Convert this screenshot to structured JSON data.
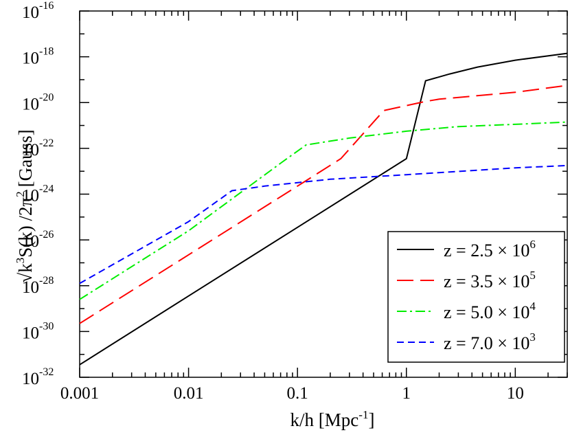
{
  "chart_data": {
    "type": "line",
    "title": "",
    "xlabel": {
      "base": "k/h [Mpc",
      "sup": "-1",
      "tail": "]"
    },
    "ylabel": {
      "radical": "√",
      "k": "k",
      "k_sup": "3",
      "mid": "S(k) /2π",
      "pi_sup": "2",
      "unit": "[Gauss]"
    },
    "xscale": "log",
    "yscale": "log",
    "xlim": [
      0.001,
      30
    ],
    "ylim": [
      1e-32,
      1e-16
    ],
    "x_ticks": [
      {
        "value": 0.001,
        "label": "0.001"
      },
      {
        "value": 0.01,
        "label": "0.01"
      },
      {
        "value": 0.1,
        "label": "0.1"
      },
      {
        "value": 1,
        "label": "1"
      },
      {
        "value": 10,
        "label": "10"
      }
    ],
    "y_ticks": [
      {
        "exp": -32,
        "base": "10",
        "sup": "-32"
      },
      {
        "exp": -30,
        "base": "10",
        "sup": "-30"
      },
      {
        "exp": -28,
        "base": "10",
        "sup": "-28"
      },
      {
        "exp": -26,
        "base": "10",
        "sup": "-26"
      },
      {
        "exp": -24,
        "base": "10",
        "sup": "-24"
      },
      {
        "exp": -22,
        "base": "10",
        "sup": "-22"
      },
      {
        "exp": -20,
        "base": "10",
        "sup": "-20"
      },
      {
        "exp": -18,
        "base": "10",
        "sup": "-18"
      },
      {
        "exp": -16,
        "base": "10",
        "sup": "-16"
      }
    ],
    "legend_position": "bottom-right",
    "series": [
      {
        "name": "z = 2.5 × 10^6",
        "label_main": "z = 2.5 × 10",
        "label_sup": "6",
        "color": "#000000",
        "dash": "solid",
        "points": [
          [
            0.001,
            -31.45
          ],
          [
            0.01,
            -28.45
          ],
          [
            0.1,
            -25.45
          ],
          [
            1,
            -22.45
          ],
          [
            1.5,
            -19.05
          ],
          [
            2.5,
            -18.75
          ],
          [
            4.5,
            -18.45
          ],
          [
            10,
            -18.15
          ],
          [
            30,
            -17.85
          ]
        ]
      },
      {
        "name": "z = 3.5 × 10^5",
        "label_main": "z = 3.5 × 10",
        "label_sup": "5",
        "color": "#ff0000",
        "dash": "long-dash",
        "points": [
          [
            0.001,
            -29.65
          ],
          [
            0.01,
            -26.65
          ],
          [
            0.1,
            -23.65
          ],
          [
            0.25,
            -22.45
          ],
          [
            0.62,
            -20.35
          ],
          [
            1.5,
            -19.95
          ],
          [
            2,
            -19.85
          ],
          [
            10,
            -19.55
          ],
          [
            30,
            -19.25
          ]
        ]
      },
      {
        "name": "z = 5.0 × 10^4",
        "label_main": "z = 5.0 × 10",
        "label_sup": "4",
        "color": "#00ee00",
        "dash": "dash-dot",
        "points": [
          [
            0.001,
            -28.6
          ],
          [
            0.01,
            -25.6
          ],
          [
            0.07,
            -22.65
          ],
          [
            0.12,
            -21.85
          ],
          [
            0.3,
            -21.55
          ],
          [
            1,
            -21.25
          ],
          [
            3,
            -21.05
          ],
          [
            10,
            -20.95
          ],
          [
            30,
            -20.85
          ]
        ]
      },
      {
        "name": "z = 7.0 × 10^3",
        "label_main": "z = 7.0 × 10",
        "label_sup": "3",
        "color": "#0000ff",
        "dash": "short-dash",
        "points": [
          [
            0.001,
            -27.9
          ],
          [
            0.01,
            -25.2
          ],
          [
            0.025,
            -23.85
          ],
          [
            0.05,
            -23.65
          ],
          [
            0.2,
            -23.35
          ],
          [
            1,
            -23.15
          ],
          [
            10,
            -22.85
          ],
          [
            30,
            -22.75
          ]
        ]
      }
    ]
  }
}
